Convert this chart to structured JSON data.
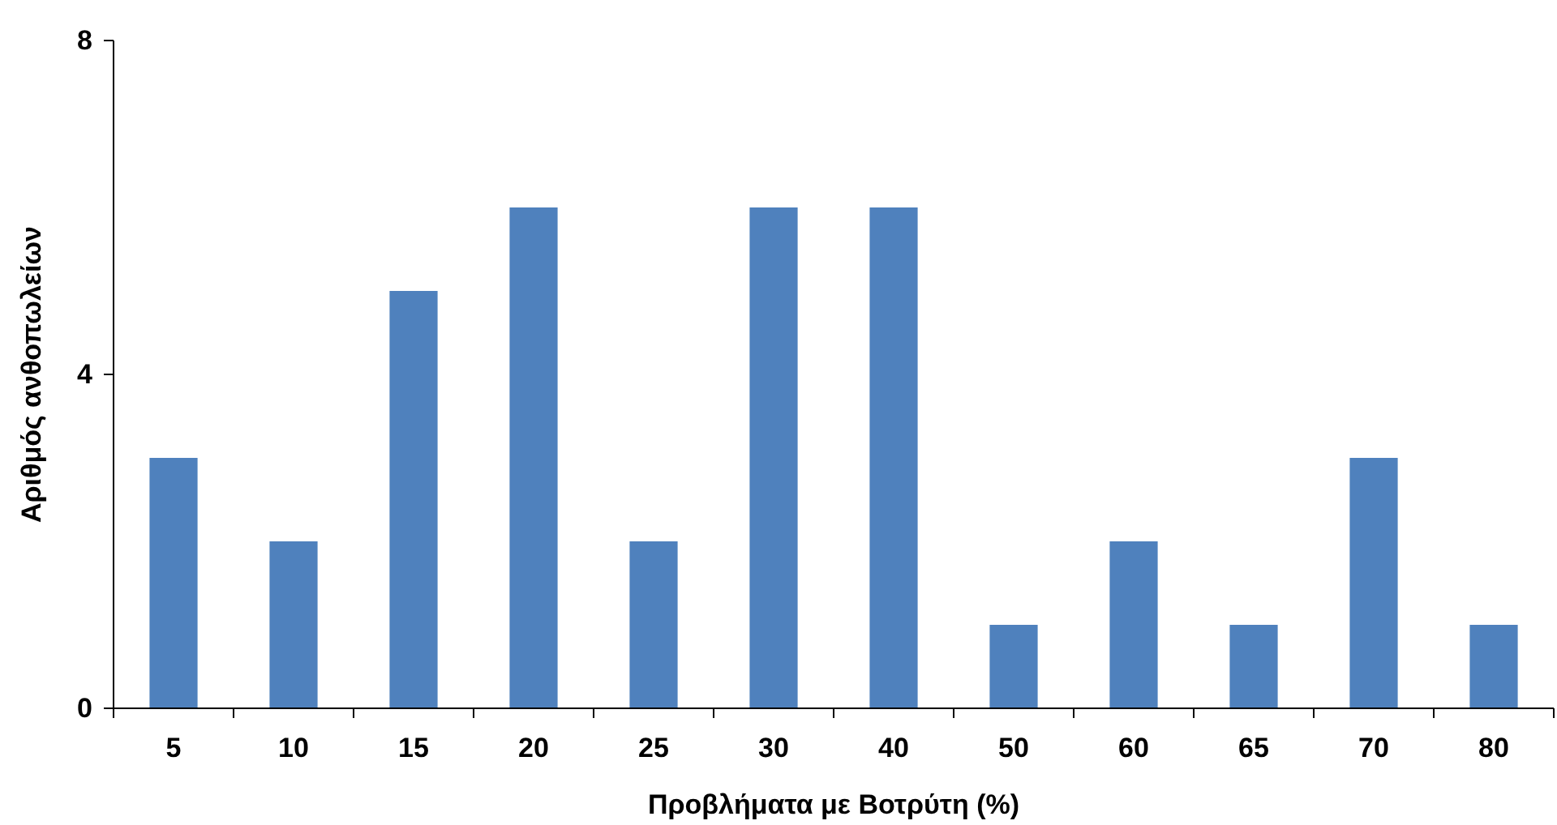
{
  "chart_data": {
    "type": "bar",
    "xlabel": "Προβλήματα με Βοτρύτη (%)",
    "ylabel": "Αριθμός ανθοπωλείων",
    "categories": [
      "5",
      "10",
      "15",
      "20",
      "25",
      "30",
      "40",
      "50",
      "60",
      "65",
      "70",
      "80"
    ],
    "values": [
      3,
      2,
      5,
      6,
      2,
      6,
      6,
      1,
      2,
      1,
      3,
      1
    ],
    "color": "#4f81bd",
    "ylim": [
      0,
      8
    ],
    "yticks": [
      0,
      4,
      8
    ],
    "grid": false
  }
}
